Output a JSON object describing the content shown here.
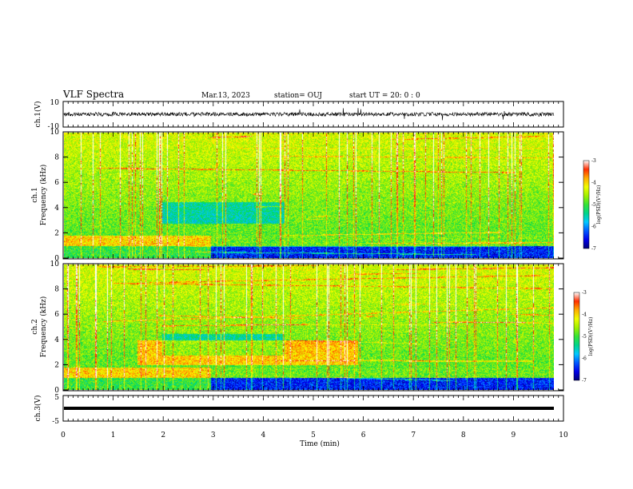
{
  "header": {
    "title": "VLF Spectra",
    "date": "Mar.13, 2023",
    "station": "station= OUJ",
    "start": "start  UT =  20: 0  : 0"
  },
  "chart_data": [
    {
      "id": "ch1_waveform",
      "type": "line",
      "ylabel": "ch.1(V)",
      "yticks": [
        "10",
        "-10"
      ],
      "ylim": [
        -10,
        10
      ],
      "xlim": [
        0,
        10
      ],
      "description_values": {
        "baseline": 0,
        "typical_amplitude": 1.5,
        "max_spike": 5
      }
    },
    {
      "id": "ch1_spectrogram",
      "type": "heatmap",
      "ylabel": "ch.1\nFrequency (kHz)",
      "ylabel_top": "ch.1",
      "ylabel_bottom": "Frequency (kHz)",
      "ylim": [
        0,
        10
      ],
      "yticks": [
        "0",
        "2",
        "4",
        "6",
        "8",
        "10"
      ],
      "xlim": [
        0,
        9.8
      ],
      "colorbar": {
        "label": "log(PSD)(V²/Hz)",
        "ticks": [
          "-3",
          "-4",
          "-5",
          "-6",
          "-7"
        ],
        "range": [
          -7,
          -3
        ]
      }
    },
    {
      "id": "ch2_spectrogram",
      "type": "heatmap",
      "ylabel_top": "ch.2",
      "ylabel_bottom": "Frequency (kHz)",
      "ylim": [
        0,
        10
      ],
      "yticks": [
        "0",
        "2",
        "4",
        "6",
        "8",
        "10"
      ],
      "xlim": [
        0,
        9.8
      ],
      "colorbar": {
        "label": "log(PSD)(V²/Hz)",
        "ticks": [
          "-3",
          "-4",
          "-5",
          "-6",
          "-7"
        ],
        "range": [
          -7,
          -3
        ]
      }
    },
    {
      "id": "ch3_waveform",
      "type": "line",
      "ylabel": "ch.3(V)",
      "yticks": [
        "5",
        "-5"
      ],
      "ylim": [
        -5,
        5
      ],
      "xlim": [
        0,
        10
      ],
      "description_values": {
        "constant_level": 0
      }
    }
  ],
  "xaxis": {
    "label": "Time (min)",
    "ticks": [
      "0",
      "1",
      "2",
      "3",
      "4",
      "5",
      "6",
      "7",
      "8",
      "9",
      "10"
    ],
    "range": [
      0,
      10
    ]
  },
  "colors": {
    "low": "#00008b",
    "mid": "#00d000",
    "high": "#ff0000",
    "top": "#ffffff"
  }
}
